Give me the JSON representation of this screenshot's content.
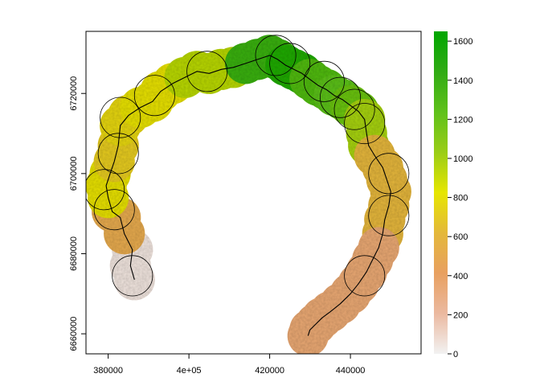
{
  "chart_data": {
    "type": "heatmap",
    "title": "",
    "xlabel": "",
    "ylabel": "",
    "xlim": [
      374500,
      457500
    ],
    "ylim": [
      6655000,
      6735500
    ],
    "x_ticks": [
      {
        "value": 380000,
        "label": "380000"
      },
      {
        "value": 400000,
        "label": "4e+05"
      },
      {
        "value": 420000,
        "label": "420000"
      },
      {
        "value": 440000,
        "label": "440000"
      }
    ],
    "y_ticks": [
      {
        "value": 6660000,
        "label": "6660000"
      },
      {
        "value": 6680000,
        "label": "6680000"
      },
      {
        "value": 6700000,
        "label": "6700000"
      },
      {
        "value": 6720000,
        "label": "6720000"
      }
    ],
    "legend": {
      "position": "right",
      "min": 0,
      "max": 1650,
      "ticks": [
        0,
        200,
        400,
        600,
        800,
        1000,
        1200,
        1400,
        1600
      ],
      "colors": [
        "#f2f2f2",
        "#ebb9a0",
        "#e8a060",
        "#e4b83a",
        "#e6e600",
        "#9acd16",
        "#5fc11a",
        "#30ab14",
        "#00a600"
      ]
    },
    "track": [
      [
        386500,
        6673500
      ],
      [
        385500,
        6677000
      ],
      [
        386000,
        6681000
      ],
      [
        384000,
        6685000
      ],
      [
        383000,
        6689000
      ],
      [
        381000,
        6690500
      ],
      [
        380000,
        6694000
      ],
      [
        379500,
        6697000
      ],
      [
        380500,
        6700000
      ],
      [
        381500,
        6703000
      ],
      [
        382500,
        6707000
      ],
      [
        383000,
        6712000
      ],
      [
        385000,
        6714500
      ],
      [
        388000,
        6716500
      ],
      [
        391000,
        6718000
      ],
      [
        393000,
        6720500
      ],
      [
        396000,
        6722500
      ],
      [
        399000,
        6724000
      ],
      [
        402000,
        6725500
      ],
      [
        405000,
        6725000
      ],
      [
        408000,
        6726000
      ],
      [
        411000,
        6726500
      ],
      [
        414000,
        6727500
      ],
      [
        417000,
        6728500
      ],
      [
        420000,
        6729500
      ],
      [
        422000,
        6728500
      ],
      [
        424000,
        6727000
      ],
      [
        426000,
        6726000
      ],
      [
        428000,
        6725000
      ],
      [
        430000,
        6723500
      ],
      [
        432000,
        6722000
      ],
      [
        434000,
        6721000
      ],
      [
        436000,
        6719500
      ],
      [
        438000,
        6718500
      ],
      [
        440000,
        6717000
      ],
      [
        442000,
        6715500
      ],
      [
        443500,
        6713500
      ],
      [
        444000,
        6710000
      ],
      [
        444500,
        6707000
      ],
      [
        446000,
        6704500
      ],
      [
        448000,
        6701500
      ],
      [
        449000,
        6698500
      ],
      [
        450000,
        6695500
      ],
      [
        449500,
        6692000
      ],
      [
        448500,
        6688500
      ],
      [
        448000,
        6685000
      ],
      [
        447000,
        6681500
      ],
      [
        445500,
        6678500
      ],
      [
        444000,
        6675500
      ],
      [
        442000,
        6672500
      ],
      [
        440000,
        6670000
      ],
      [
        437500,
        6667500
      ],
      [
        435000,
        6665500
      ],
      [
        433000,
        6664000
      ],
      [
        431500,
        6662500
      ],
      [
        430000,
        6661000
      ],
      [
        429500,
        6659500
      ]
    ],
    "buffers": [
      {
        "x": 386000,
        "y": 6674500,
        "elev": 50
      },
      {
        "x": 381500,
        "y": 6691000,
        "elev": 500
      },
      {
        "x": 379000,
        "y": 6696000,
        "elev": 800
      },
      {
        "x": 382500,
        "y": 6705000,
        "elev": 700
      },
      {
        "x": 383000,
        "y": 6714000,
        "elev": 750
      },
      {
        "x": 391500,
        "y": 6719500,
        "elev": 800
      },
      {
        "x": 404500,
        "y": 6725500,
        "elev": 950
      },
      {
        "x": 421500,
        "y": 6729500,
        "elev": 1400
      },
      {
        "x": 425000,
        "y": 6727500,
        "elev": 1500
      },
      {
        "x": 433500,
        "y": 6723000,
        "elev": 1300
      },
      {
        "x": 437500,
        "y": 6719000,
        "elev": 1250
      },
      {
        "x": 441000,
        "y": 6716000,
        "elev": 1200
      },
      {
        "x": 443500,
        "y": 6712500,
        "elev": 1000
      },
      {
        "x": 449500,
        "y": 6700000,
        "elev": 600
      },
      {
        "x": 449500,
        "y": 6689500,
        "elev": 600
      },
      {
        "x": 443500,
        "y": 6674500,
        "elev": 350
      }
    ]
  }
}
